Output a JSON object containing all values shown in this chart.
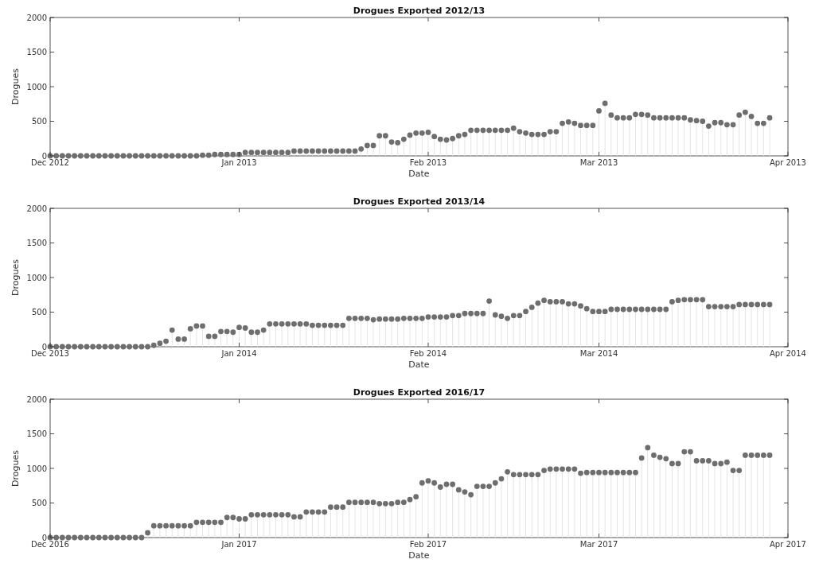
{
  "chart_data": [
    {
      "type": "lollipop",
      "title": "Drogues Exported 2012/13",
      "xlabel": "Date",
      "ylabel": "Drogues",
      "marker": "circle",
      "grid": false,
      "xlim": [
        "2012-12-01",
        "2013-04-01"
      ],
      "xticks": [
        {
          "value": "2012-12-01",
          "label": "Dec 2012"
        },
        {
          "value": "2013-01-01",
          "label": "Jan 2013"
        },
        {
          "value": "2013-02-01",
          "label": "Feb 2013"
        },
        {
          "value": "2013-03-01",
          "label": "Mar 2013"
        },
        {
          "value": "2013-04-01",
          "label": "Apr 2013"
        }
      ],
      "ylim": [
        0,
        2000
      ],
      "yticks": [
        0,
        500,
        1000,
        1500,
        2000
      ],
      "x": [
        "2012-12-01",
        "2012-12-02",
        "2012-12-03",
        "2012-12-04",
        "2012-12-05",
        "2012-12-06",
        "2012-12-07",
        "2012-12-08",
        "2012-12-09",
        "2012-12-10",
        "2012-12-11",
        "2012-12-12",
        "2012-12-13",
        "2012-12-14",
        "2012-12-15",
        "2012-12-16",
        "2012-12-17",
        "2012-12-18",
        "2012-12-19",
        "2012-12-20",
        "2012-12-21",
        "2012-12-22",
        "2012-12-23",
        "2012-12-24",
        "2012-12-25",
        "2012-12-26",
        "2012-12-27",
        "2012-12-28",
        "2012-12-29",
        "2012-12-30",
        "2012-12-31",
        "2013-01-01",
        "2013-01-02",
        "2013-01-03",
        "2013-01-04",
        "2013-01-05",
        "2013-01-06",
        "2013-01-07",
        "2013-01-08",
        "2013-01-09",
        "2013-01-10",
        "2013-01-11",
        "2013-01-12",
        "2013-01-13",
        "2013-01-14",
        "2013-01-15",
        "2013-01-16",
        "2013-01-17",
        "2013-01-18",
        "2013-01-19",
        "2013-01-20",
        "2013-01-21",
        "2013-01-22",
        "2013-01-23",
        "2013-01-24",
        "2013-01-25",
        "2013-01-26",
        "2013-01-27",
        "2013-01-28",
        "2013-01-29",
        "2013-01-30",
        "2013-01-31",
        "2013-02-01",
        "2013-02-02",
        "2013-02-03",
        "2013-02-04",
        "2013-02-05",
        "2013-02-06",
        "2013-02-07",
        "2013-02-08",
        "2013-02-09",
        "2013-02-10",
        "2013-02-11",
        "2013-02-12",
        "2013-02-13",
        "2013-02-14",
        "2013-02-15",
        "2013-02-16",
        "2013-02-17",
        "2013-02-18",
        "2013-02-19",
        "2013-02-20",
        "2013-02-21",
        "2013-02-22",
        "2013-02-23",
        "2013-02-24",
        "2013-02-25",
        "2013-02-26",
        "2013-02-27",
        "2013-02-28",
        "2013-03-01",
        "2013-03-02",
        "2013-03-03",
        "2013-03-04",
        "2013-03-05",
        "2013-03-06",
        "2013-03-07",
        "2013-03-08",
        "2013-03-09",
        "2013-03-10",
        "2013-03-11",
        "2013-03-12",
        "2013-03-13",
        "2013-03-14",
        "2013-03-15",
        "2013-03-16",
        "2013-03-17",
        "2013-03-18",
        "2013-03-19",
        "2013-03-20",
        "2013-03-21",
        "2013-03-22",
        "2013-03-23",
        "2013-03-24",
        "2013-03-25",
        "2013-03-26",
        "2013-03-27",
        "2013-03-28",
        "2013-03-29"
      ],
      "series": [
        {
          "color": "#6e6e6e",
          "values": [
            0,
            0,
            0,
            0,
            0,
            0,
            0,
            0,
            0,
            0,
            0,
            0,
            0,
            0,
            0,
            0,
            0,
            0,
            0,
            0,
            0,
            0,
            0,
            0,
            0,
            10,
            10,
            20,
            20,
            20,
            20,
            20,
            50,
            50,
            50,
            50,
            50,
            50,
            50,
            50,
            70,
            70,
            70,
            70,
            70,
            70,
            70,
            70,
            70,
            70,
            70,
            100,
            150,
            150,
            290,
            290,
            200,
            190,
            240,
            300,
            330,
            330,
            340,
            280,
            240,
            230,
            250,
            290,
            310,
            370,
            370,
            370,
            370,
            370,
            370,
            370,
            400,
            350,
            330,
            310,
            310,
            310,
            350,
            350,
            470,
            490,
            470,
            440,
            440,
            440,
            650,
            760,
            590,
            550,
            550,
            550,
            600,
            600,
            590,
            550,
            550,
            550,
            550,
            550,
            550,
            520,
            510,
            500,
            430,
            480,
            480,
            450,
            450,
            590,
            630,
            570,
            470,
            470,
            550
          ]
        }
      ]
    },
    {
      "type": "lollipop",
      "title": "Drogues Exported 2013/14",
      "xlabel": "Date",
      "ylabel": "Drogues",
      "marker": "circle",
      "grid": false,
      "xlim": [
        "2013-12-01",
        "2014-04-01"
      ],
      "xticks": [
        {
          "value": "2013-12-01",
          "label": "Dec 2013"
        },
        {
          "value": "2014-01-01",
          "label": "Jan 2014"
        },
        {
          "value": "2014-02-01",
          "label": "Feb 2014"
        },
        {
          "value": "2014-03-01",
          "label": "Mar 2014"
        },
        {
          "value": "2014-04-01",
          "label": "Apr 2014"
        }
      ],
      "ylim": [
        0,
        2000
      ],
      "yticks": [
        0,
        500,
        1000,
        1500,
        2000
      ],
      "x": [
        "2013-12-01",
        "2013-12-02",
        "2013-12-03",
        "2013-12-04",
        "2013-12-05",
        "2013-12-06",
        "2013-12-07",
        "2013-12-08",
        "2013-12-09",
        "2013-12-10",
        "2013-12-11",
        "2013-12-12",
        "2013-12-13",
        "2013-12-14",
        "2013-12-15",
        "2013-12-16",
        "2013-12-17",
        "2013-12-18",
        "2013-12-19",
        "2013-12-20",
        "2013-12-21",
        "2013-12-22",
        "2013-12-23",
        "2013-12-24",
        "2013-12-25",
        "2013-12-26",
        "2013-12-27",
        "2013-12-28",
        "2013-12-29",
        "2013-12-30",
        "2013-12-31",
        "2014-01-01",
        "2014-01-02",
        "2014-01-03",
        "2014-01-04",
        "2014-01-05",
        "2014-01-06",
        "2014-01-07",
        "2014-01-08",
        "2014-01-09",
        "2014-01-10",
        "2014-01-11",
        "2014-01-12",
        "2014-01-13",
        "2014-01-14",
        "2014-01-15",
        "2014-01-16",
        "2014-01-17",
        "2014-01-18",
        "2014-01-19",
        "2014-01-20",
        "2014-01-21",
        "2014-01-22",
        "2014-01-23",
        "2014-01-24",
        "2014-01-25",
        "2014-01-26",
        "2014-01-27",
        "2014-01-28",
        "2014-01-29",
        "2014-01-30",
        "2014-01-31",
        "2014-02-01",
        "2014-02-02",
        "2014-02-03",
        "2014-02-04",
        "2014-02-05",
        "2014-02-06",
        "2014-02-07",
        "2014-02-08",
        "2014-02-09",
        "2014-02-10",
        "2014-02-11",
        "2014-02-12",
        "2014-02-13",
        "2014-02-14",
        "2014-02-15",
        "2014-02-16",
        "2014-02-17",
        "2014-02-18",
        "2014-02-19",
        "2014-02-20",
        "2014-02-21",
        "2014-02-22",
        "2014-02-23",
        "2014-02-24",
        "2014-02-25",
        "2014-02-26",
        "2014-02-27",
        "2014-02-28",
        "2014-03-01",
        "2014-03-02",
        "2014-03-03",
        "2014-03-04",
        "2014-03-05",
        "2014-03-06",
        "2014-03-07",
        "2014-03-08",
        "2014-03-09",
        "2014-03-10",
        "2014-03-11",
        "2014-03-12",
        "2014-03-13",
        "2014-03-14",
        "2014-03-15",
        "2014-03-16",
        "2014-03-17",
        "2014-03-18",
        "2014-03-19",
        "2014-03-20",
        "2014-03-21",
        "2014-03-22",
        "2014-03-23",
        "2014-03-24",
        "2014-03-25",
        "2014-03-26",
        "2014-03-27",
        "2014-03-28",
        "2014-03-29"
      ],
      "series": [
        {
          "color": "#6e6e6e",
          "values": [
            0,
            0,
            0,
            0,
            0,
            0,
            0,
            0,
            0,
            0,
            0,
            0,
            0,
            0,
            0,
            0,
            0,
            20,
            50,
            80,
            240,
            110,
            110,
            260,
            300,
            300,
            150,
            150,
            220,
            220,
            210,
            280,
            270,
            210,
            210,
            240,
            330,
            330,
            330,
            330,
            330,
            330,
            330,
            310,
            310,
            310,
            310,
            310,
            310,
            410,
            410,
            410,
            410,
            390,
            400,
            400,
            400,
            400,
            410,
            410,
            410,
            410,
            430,
            430,
            430,
            430,
            450,
            450,
            480,
            480,
            480,
            480,
            660,
            460,
            440,
            410,
            450,
            450,
            510,
            570,
            630,
            670,
            650,
            650,
            650,
            620,
            620,
            590,
            550,
            510,
            510,
            510,
            540,
            540,
            540,
            540,
            540,
            540,
            540,
            540,
            540,
            540,
            650,
            670,
            680,
            680,
            680,
            680,
            580,
            580,
            580,
            580,
            580,
            610,
            610,
            610,
            610,
            610,
            610
          ]
        }
      ]
    },
    {
      "type": "lollipop",
      "title": "Drogues Exported 2016/17",
      "xlabel": "Date",
      "ylabel": "Drogues",
      "marker": "circle",
      "grid": false,
      "xlim": [
        "2016-12-01",
        "2017-04-01"
      ],
      "xticks": [
        {
          "value": "2016-12-01",
          "label": "Dec 2016"
        },
        {
          "value": "2017-01-01",
          "label": "Jan 2017"
        },
        {
          "value": "2017-02-01",
          "label": "Feb 2017"
        },
        {
          "value": "2017-03-01",
          "label": "Mar 2017"
        },
        {
          "value": "2017-04-01",
          "label": "Apr 2017"
        }
      ],
      "ylim": [
        0,
        2000
      ],
      "yticks": [
        0,
        500,
        1000,
        1500,
        2000
      ],
      "x": [
        "2016-12-01",
        "2016-12-02",
        "2016-12-03",
        "2016-12-04",
        "2016-12-05",
        "2016-12-06",
        "2016-12-07",
        "2016-12-08",
        "2016-12-09",
        "2016-12-10",
        "2016-12-11",
        "2016-12-12",
        "2016-12-13",
        "2016-12-14",
        "2016-12-15",
        "2016-12-16",
        "2016-12-17",
        "2016-12-18",
        "2016-12-19",
        "2016-12-20",
        "2016-12-21",
        "2016-12-22",
        "2016-12-23",
        "2016-12-24",
        "2016-12-25",
        "2016-12-26",
        "2016-12-27",
        "2016-12-28",
        "2016-12-29",
        "2016-12-30",
        "2016-12-31",
        "2017-01-01",
        "2017-01-02",
        "2017-01-03",
        "2017-01-04",
        "2017-01-05",
        "2017-01-06",
        "2017-01-07",
        "2017-01-08",
        "2017-01-09",
        "2017-01-10",
        "2017-01-11",
        "2017-01-12",
        "2017-01-13",
        "2017-01-14",
        "2017-01-15",
        "2017-01-16",
        "2017-01-17",
        "2017-01-18",
        "2017-01-19",
        "2017-01-20",
        "2017-01-21",
        "2017-01-22",
        "2017-01-23",
        "2017-01-24",
        "2017-01-25",
        "2017-01-26",
        "2017-01-27",
        "2017-01-28",
        "2017-01-29",
        "2017-01-30",
        "2017-01-31",
        "2017-02-01",
        "2017-02-02",
        "2017-02-03",
        "2017-02-04",
        "2017-02-05",
        "2017-02-06",
        "2017-02-07",
        "2017-02-08",
        "2017-02-09",
        "2017-02-10",
        "2017-02-11",
        "2017-02-12",
        "2017-02-13",
        "2017-02-14",
        "2017-02-15",
        "2017-02-16",
        "2017-02-17",
        "2017-02-18",
        "2017-02-19",
        "2017-02-20",
        "2017-02-21",
        "2017-02-22",
        "2017-02-23",
        "2017-02-24",
        "2017-02-25",
        "2017-02-26",
        "2017-02-27",
        "2017-02-28",
        "2017-03-01",
        "2017-03-02",
        "2017-03-03",
        "2017-03-04",
        "2017-03-05",
        "2017-03-06",
        "2017-03-07",
        "2017-03-08",
        "2017-03-09",
        "2017-03-10",
        "2017-03-11",
        "2017-03-12",
        "2017-03-13",
        "2017-03-14",
        "2017-03-15",
        "2017-03-16",
        "2017-03-17",
        "2017-03-18",
        "2017-03-19",
        "2017-03-20",
        "2017-03-21",
        "2017-03-22",
        "2017-03-23",
        "2017-03-24",
        "2017-03-25",
        "2017-03-26",
        "2017-03-27",
        "2017-03-28",
        "2017-03-29"
      ],
      "series": [
        {
          "color": "#6e6e6e",
          "values": [
            0,
            0,
            0,
            0,
            0,
            0,
            0,
            0,
            0,
            0,
            0,
            0,
            0,
            0,
            0,
            0,
            70,
            170,
            170,
            170,
            170,
            170,
            170,
            170,
            220,
            220,
            220,
            220,
            220,
            290,
            290,
            270,
            270,
            330,
            330,
            330,
            330,
            330,
            330,
            330,
            300,
            300,
            370,
            370,
            370,
            370,
            440,
            440,
            440,
            510,
            510,
            510,
            510,
            510,
            490,
            490,
            490,
            510,
            510,
            550,
            590,
            790,
            820,
            790,
            730,
            770,
            770,
            690,
            660,
            620,
            740,
            740,
            740,
            790,
            850,
            950,
            910,
            910,
            910,
            910,
            910,
            970,
            990,
            990,
            990,
            990,
            990,
            930,
            940,
            940,
            940,
            940,
            940,
            940,
            940,
            940,
            940,
            1150,
            1300,
            1190,
            1160,
            1140,
            1070,
            1070,
            1240,
            1240,
            1110,
            1110,
            1110,
            1070,
            1070,
            1090,
            970,
            970,
            1190,
            1190,
            1190,
            1190,
            1190
          ]
        }
      ]
    }
  ]
}
